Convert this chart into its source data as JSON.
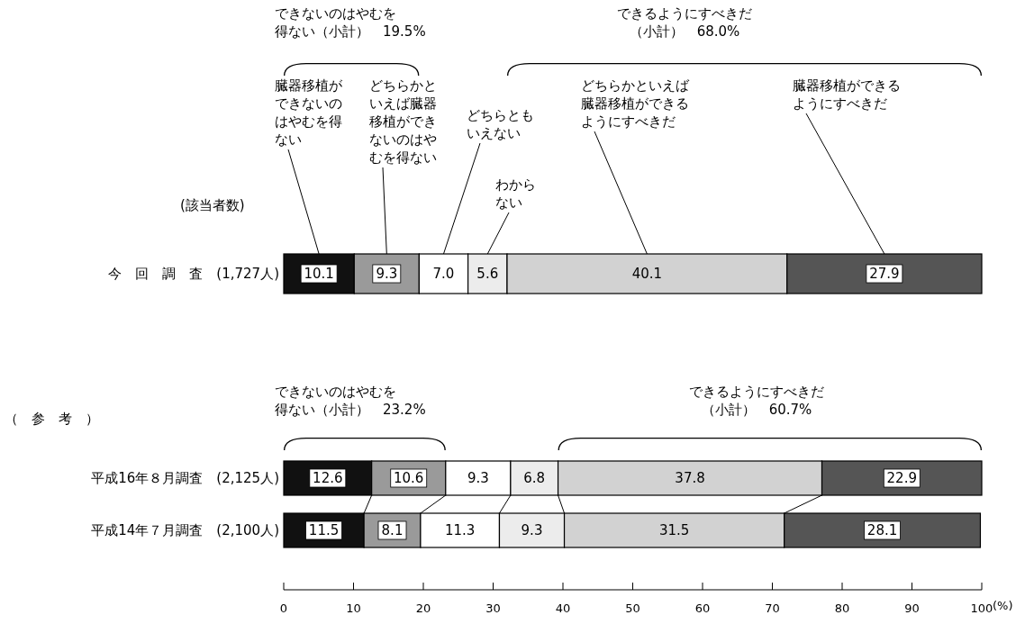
{
  "chart_data": {
    "type": "bar",
    "orientation": "horizontal",
    "stacked": true,
    "legend": false,
    "grid": false,
    "categories": [
      "今　回　調　査　(1,727人)",
      "平成16年８月調査　(2,125人)",
      "平成14年７月調査　(2,100人)"
    ],
    "xlabel": "(%)",
    "xlim": [
      0,
      100
    ],
    "xticks": [
      0,
      10,
      20,
      30,
      40,
      50,
      60,
      70,
      80,
      90,
      100
    ],
    "series": [
      {
        "name": "臓器移植ができないのはやむを得ない",
        "color": "#111111",
        "values": [
          10.1,
          12.6,
          11.5
        ],
        "value_labels": [
          "10.1",
          "12.6",
          "11.5"
        ]
      },
      {
        "name": "どちらかといえば臓器移植ができないのはやむを得ない",
        "color": "#9a9a9a",
        "values": [
          9.3,
          10.6,
          8.1
        ],
        "value_labels": [
          "9.3",
          "10.6",
          "8.1"
        ]
      },
      {
        "name": "どちらともいえない",
        "color": "#ffffff",
        "values": [
          7.0,
          9.3,
          11.3
        ],
        "value_labels": [
          "7.0",
          "9.3",
          "11.3"
        ]
      },
      {
        "name": "わからない",
        "color": "#ececec",
        "values": [
          5.6,
          6.8,
          9.3
        ],
        "value_labels": [
          "5.6",
          "6.8",
          "9.3"
        ]
      },
      {
        "name": "どちらかといえば臓器移植ができるようにすべきだ",
        "color": "#d2d2d2",
        "values": [
          40.1,
          37.8,
          31.5
        ],
        "value_labels": [
          "40.1",
          "37.8",
          "31.5"
        ]
      },
      {
        "name": "臓器移植ができるようにすべきだ",
        "color": "#555555",
        "values": [
          27.9,
          22.9,
          28.1
        ],
        "value_labels": [
          "27.9",
          "22.9",
          "28.1"
        ]
      }
    ],
    "annotations": [
      "できないのはやむを得ない（小計）　19.5%",
      "できるようにすべきだ（小計）　68.0%",
      "できないのはやむを得ない（小計）　23.2%",
      "できるようにすべきだ（小計）　60.7%",
      "(該当者数)",
      "（　参　考　）"
    ]
  }
}
